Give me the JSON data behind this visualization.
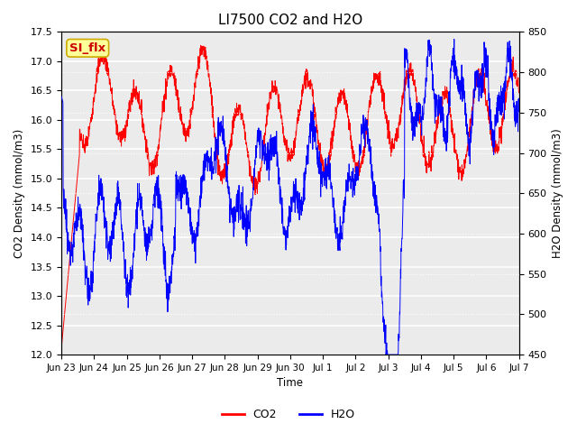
{
  "title": "LI7500 CO2 and H2O",
  "xlabel": "Time",
  "ylabel_left": "CO2 Density (mmol/m3)",
  "ylabel_right": "H2O Density (mmol/m3)",
  "co2_ylim": [
    12.0,
    17.5
  ],
  "h2o_ylim": [
    450,
    850
  ],
  "co2_yticks": [
    12.0,
    12.5,
    13.0,
    13.5,
    14.0,
    14.5,
    15.0,
    15.5,
    16.0,
    16.5,
    17.0,
    17.5
  ],
  "h2o_yticks": [
    450,
    500,
    550,
    600,
    650,
    700,
    750,
    800,
    850
  ],
  "xtick_labels": [
    "Jun 23",
    "Jun 24",
    "Jun 25",
    "Jun 26",
    "Jun 27",
    "Jun 28",
    "Jun 29",
    "Jun 30",
    "Jul 1",
    "Jul 2",
    "Jul 3",
    "Jul 4",
    "Jul 5",
    "Jul 6",
    "Jul 7"
  ],
  "co2_color": "#FF0000",
  "h2o_color": "#0000FF",
  "plot_bg_color": "#EBEBEB",
  "grid_color": "#FFFFFF",
  "annotation_text": "SI_flx",
  "annotation_bg": "#FFFF99",
  "annotation_border": "#CCAA00",
  "legend_co2": "CO2",
  "legend_h2o": "H2O"
}
